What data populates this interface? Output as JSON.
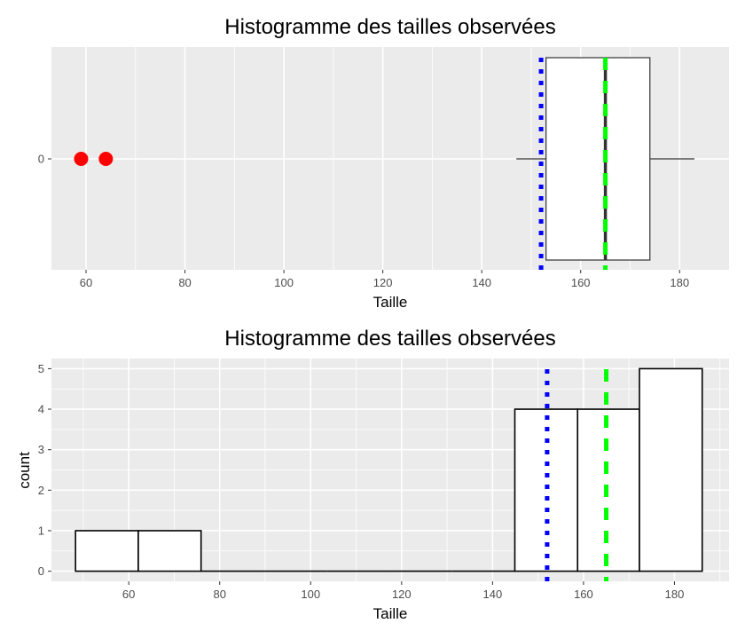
{
  "chart_data": [
    {
      "type": "boxplot",
      "title": "Histogramme des tailles observées",
      "xlabel": "Taille",
      "ylabel": "",
      "xlim": [
        53,
        190
      ],
      "x_ticks": [
        60,
        80,
        100,
        120,
        140,
        160,
        180
      ],
      "y_ticks": [
        0
      ],
      "box": {
        "whisker_low": 147,
        "q1": 153,
        "median": 165,
        "q3": 174,
        "whisker_high": 183
      },
      "outliers": [
        59,
        64
      ],
      "reference_lines": [
        {
          "value": 152,
          "style": "dotted",
          "color": "#0000ff"
        },
        {
          "value": 165,
          "style": "dashed",
          "color": "#00ff00"
        }
      ],
      "colors": {
        "panel": "#ebebeb",
        "grid": "#ffffff",
        "outlier": "#ff0000",
        "box_fill": "#ffffff",
        "box_line": "#333333"
      },
      "grid": true
    },
    {
      "type": "histogram",
      "title": "Histogramme des tailles observées",
      "xlabel": "Taille",
      "ylabel": "count",
      "xlim": [
        43,
        192
      ],
      "ylim": [
        -0.25,
        5.25
      ],
      "x_ticks": [
        60,
        80,
        100,
        120,
        140,
        160,
        180
      ],
      "y_ticks": [
        0,
        1,
        2,
        3,
        4,
        5
      ],
      "bins": [
        {
          "x0": 48.3,
          "x1": 62.1,
          "count": 1
        },
        {
          "x0": 62.1,
          "x1": 75.9,
          "count": 1
        },
        {
          "x0": 75.9,
          "x1": 89.7,
          "count": 0
        },
        {
          "x0": 89.7,
          "x1": 103.5,
          "count": 0
        },
        {
          "x0": 103.5,
          "x1": 117.3,
          "count": 0
        },
        {
          "x0": 117.3,
          "x1": 131.1,
          "count": 0
        },
        {
          "x0": 131.1,
          "x1": 144.9,
          "count": 0
        },
        {
          "x0": 144.9,
          "x1": 158.7,
          "count": 4
        },
        {
          "x0": 158.7,
          "x1": 172.3,
          "count": 4
        },
        {
          "x0": 172.3,
          "x1": 186.1,
          "count": 5
        }
      ],
      "reference_lines": [
        {
          "value": 152,
          "style": "dotted",
          "color": "#0000ff"
        },
        {
          "value": 165,
          "style": "dashed",
          "color": "#00ff00"
        }
      ],
      "colors": {
        "panel": "#ebebeb",
        "grid": "#ffffff",
        "bar_fill": "#ffffff",
        "bar_line": "#000000"
      },
      "grid": true
    }
  ]
}
